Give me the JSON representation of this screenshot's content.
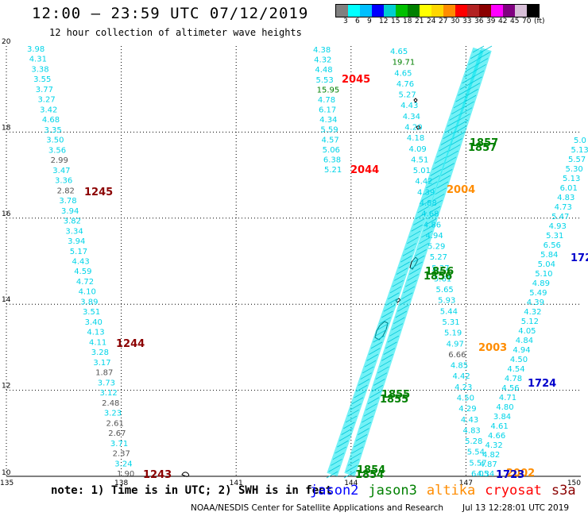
{
  "header": {
    "title": "12:00 – 23:59 UTC 07/12/2019",
    "subtitle": "12 hour collection of altimeter wave heights"
  },
  "colorbar": {
    "colors": [
      "#808080",
      "#00ffff",
      "#00bfff",
      "#0000ff",
      "#00ced1",
      "#00c000",
      "#008000",
      "#ffff00",
      "#ffd700",
      "#ff8c00",
      "#ff0000",
      "#b22222",
      "#8b0000",
      "#ff00ff",
      "#800080",
      "#d8bfd8",
      "#000000"
    ],
    "labels": [
      "3",
      "6",
      "9",
      "12",
      "15",
      "18",
      "21",
      "24",
      "27",
      "30",
      "33",
      "36",
      "39",
      "42",
      "45",
      "70",
      "(ft)"
    ]
  },
  "map": {
    "x_ticks": [
      "135",
      "138",
      "141",
      "144",
      "147",
      "150"
    ],
    "y_ticks": [
      "10",
      "12",
      "14",
      "16",
      "18",
      "20"
    ]
  },
  "tracks": {
    "west": {
      "values": [
        "3.98",
        "4.31",
        "3.38",
        "3.55",
        "3.77",
        "3.27",
        "3.42",
        "4.68",
        "3.35",
        "3.50",
        "3.56",
        "2.99",
        "3.47",
        "3.36",
        "2.82",
        "3.78",
        "3.94",
        "3.82",
        "3.34",
        "3.94",
        "5.17",
        "4.43",
        "4.59",
        "4.72",
        "4.10",
        "3.89",
        "3.51",
        "3.40",
        "4.13",
        "4.11",
        "3.28",
        "3.17",
        "1.87",
        "3.73",
        "3.12",
        "2.48",
        "3.23",
        "2.61",
        "2.67",
        "3.71",
        "2.37",
        "3.24",
        "1.90"
      ],
      "gray": [
        "2.99",
        "2.82",
        "1.87",
        "2.48",
        "2.61",
        "2.67",
        "2.37",
        "1.90"
      ]
    },
    "upper_mid": {
      "values": [
        "4.38",
        "4.32",
        "4.48",
        "5.53",
        "15.95",
        "4.78",
        "6.17",
        "4.34",
        "5.59",
        "4.57",
        "5.06",
        "6.38",
        "5.21"
      ],
      "green": [
        "15.95"
      ]
    },
    "center": {
      "values": [
        "4.65",
        "19.71",
        "4.65",
        "4.76",
        "5.27",
        "4.43",
        "4.34",
        "4.20",
        "4.18",
        "4.09",
        "4.51",
        "5.01",
        "4.42",
        "4.39",
        "4.88",
        "4.68",
        "4.86",
        "4.94",
        "5.29",
        "5.27",
        "5.27",
        "5.61",
        "5.65",
        "5.93",
        "5.44",
        "5.31",
        "5.19",
        "4.97",
        "6.66",
        "4.85",
        "4.42",
        "4.23",
        "4.50",
        "4.29",
        "4.43",
        "4.83",
        "5.28",
        "5.54",
        "5.57",
        "6.05"
      ],
      "green": [
        "19.71"
      ],
      "gray": [
        "6.66"
      ]
    },
    "east": {
      "values": [
        "5.0",
        "5.13",
        "5.57",
        "5.30",
        "5.13",
        "6.01",
        "4.83",
        "4.73",
        "5.47",
        "4.93",
        "5.31",
        "6.56",
        "5.84",
        "5.04",
        "5.10",
        "4.89",
        "5.49",
        "4.39",
        "4.32",
        "5.12",
        "4.05",
        "4.84",
        "4.94",
        "4.50",
        "4.54",
        "4.78",
        "4.56",
        "4.71",
        "4.80",
        "3.84",
        "4.61",
        "4.66",
        "4.32",
        "4.82",
        "4.87",
        "4.34"
      ]
    }
  },
  "time_labels": [
    {
      "text": "2045",
      "color": "#ff0000"
    },
    {
      "text": "2044",
      "color": "#ff0000"
    },
    {
      "text": "1245",
      "color": "#8b0000"
    },
    {
      "text": "1244",
      "color": "#8b0000"
    },
    {
      "text": "1243",
      "color": "#8b0000"
    },
    {
      "text": "1857",
      "color": "#008000"
    },
    {
      "text": "1857",
      "color": "#008000"
    },
    {
      "text": "1856",
      "color": "#008000"
    },
    {
      "text": "1856",
      "color": "#008000"
    },
    {
      "text": "1855",
      "color": "#008000"
    },
    {
      "text": "1855",
      "color": "#008000"
    },
    {
      "text": "1854",
      "color": "#008000"
    },
    {
      "text": "1854",
      "color": "#008000"
    },
    {
      "text": "2004",
      "color": "#ff8c00"
    },
    {
      "text": "2003",
      "color": "#ff8c00"
    },
    {
      "text": "2002",
      "color": "#ff8c00"
    },
    {
      "text": "1724",
      "color": "#0000cc"
    },
    {
      "text": "1723",
      "color": "#0000cc"
    },
    {
      "text": "172",
      "color": "#0000cc"
    }
  ],
  "footer": {
    "note": "note:  1) Time is in UTC;  2) SWH is in feet",
    "legend": [
      {
        "label": "jason2",
        "color": "#0000ff"
      },
      {
        "label": "jason3",
        "color": "#008000"
      },
      {
        "label": "altika",
        "color": "#ff8c00"
      },
      {
        "label": "cryosat",
        "color": "#ff0000"
      },
      {
        "label": "s3a",
        "color": "#8b0000"
      }
    ],
    "credit": "NOAA/NESDIS Center for Satellite Applications and Research",
    "timestamp": "Jul 13 12:28:01 UTC 2019"
  }
}
